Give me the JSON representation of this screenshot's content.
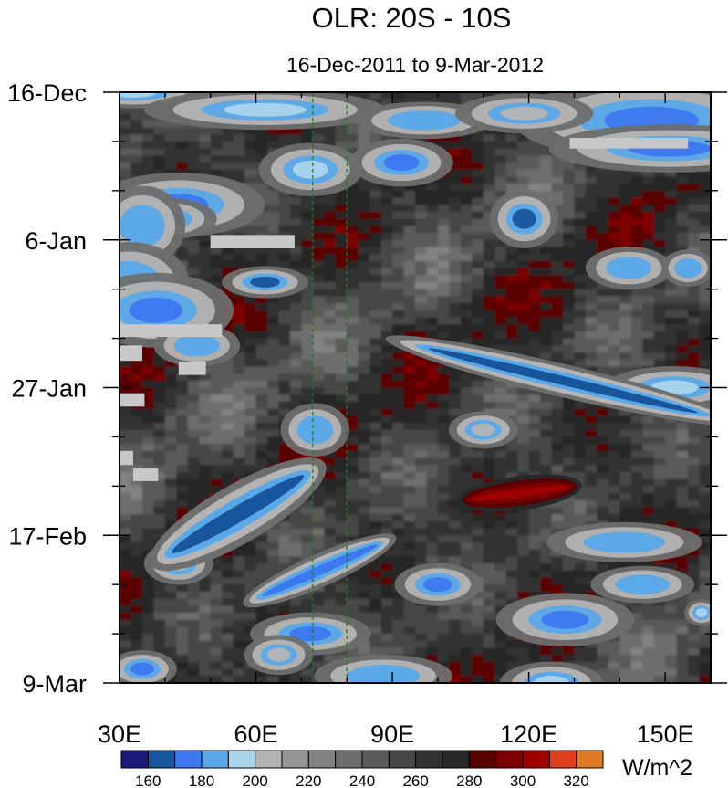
{
  "chart_data": {
    "type": "heatmap",
    "title": "OLR: 20S - 10S",
    "subtitle": "16-Dec-2011 to 9-Mar-2012",
    "x_axis": {
      "range": [
        30,
        160
      ],
      "ticks": [
        30,
        60,
        90,
        120,
        150
      ],
      "tick_labels": [
        "30E",
        "60E",
        "90E",
        "120E",
        "150E"
      ],
      "minor_step": 10
    },
    "y_axis": {
      "range_days": [
        0,
        84
      ],
      "ticks": [
        0,
        21,
        42,
        63,
        84
      ],
      "tick_labels": [
        "16-Dec",
        "6-Jan",
        "27-Jan",
        "17-Feb",
        "9-Mar"
      ],
      "minor_step_days": 7,
      "direction": "time increases downward"
    },
    "reference_lines_lon": [
      72.5,
      80
    ],
    "colorbar": {
      "unit_label": "W/m^2",
      "levels": [
        160,
        170,
        180,
        190,
        200,
        210,
        220,
        230,
        240,
        250,
        260,
        270,
        280,
        290,
        300,
        310,
        320
      ],
      "level_labels": [
        "160",
        "180",
        "200",
        "220",
        "240",
        "260",
        "280",
        "300",
        "320"
      ],
      "colors": [
        "#1a1a78",
        "#17559c",
        "#3c78f0",
        "#5aa8e8",
        "#aad4ec",
        "#b4b4b4",
        "#969696",
        "#828282",
        "#6e6e6e",
        "#5a5a5a",
        "#464646",
        "#323232",
        "#282828",
        "#5a0000",
        "#7c0000",
        "#a00000",
        "#e03c1e",
        "#e07a28"
      ]
    },
    "features": [
      {
        "name": "eastward band 1",
        "lon_start": 40,
        "day_start": 66,
        "lon_end": 72,
        "day_end": 54,
        "olr": 165
      },
      {
        "name": "eastward band 2",
        "lon_start": 60,
        "day_start": 72,
        "lon_end": 88,
        "day_end": 64,
        "olr": 175
      },
      {
        "name": "low OLR region central Pacific",
        "lon_start": 95,
        "day_start": 36,
        "lon_end": 160,
        "day_end": 46,
        "olr": 165
      },
      {
        "name": "high OLR anomaly",
        "lon_start": 106,
        "day_start": 58,
        "lon_end": 130,
        "day_end": 56,
        "olr": 305
      }
    ]
  }
}
